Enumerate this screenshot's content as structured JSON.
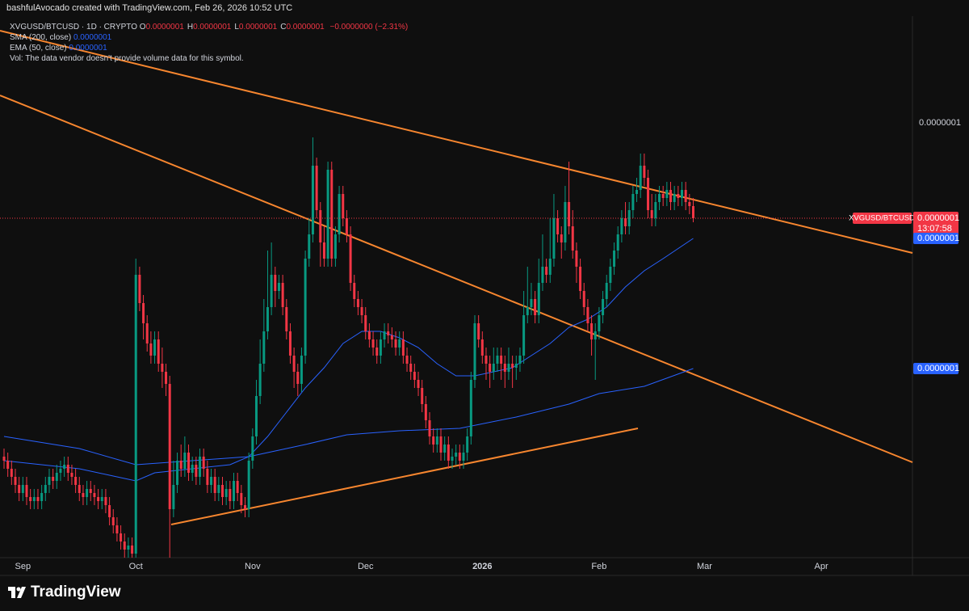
{
  "header": {
    "credit": "bashfulAvocado created with TradingView.com, Feb 26, 2026 10:52 UTC",
    "logo": "TradingView"
  },
  "legend": {
    "symbol": "XVGUSD/BTCUSD · 1D · CRYPTO",
    "ohlc": [
      {
        "key": "O",
        "value": "0.0000001"
      },
      {
        "key": "H",
        "value": "0.0000001"
      },
      {
        "key": "L",
        "value": "0.0000001"
      },
      {
        "key": "C",
        "value": "0.0000001"
      }
    ],
    "change": "−0.0000000 (−2.31%)",
    "volume_note": "Vol: The data vendor doesn't provide volume data for this symbol."
  },
  "chart_data": {
    "type": "candlestick",
    "up_color": "#089981",
    "down_color": "#f23645",
    "last_tag": {
      "name": "XVGUSD/BTCUSD",
      "label": "0.0000001",
      "countdown": "13:07:58"
    },
    "xlim": [
      0,
      241
    ],
    "xticks": [
      {
        "value": 5,
        "label": "Sep"
      },
      {
        "value": 35,
        "label": "Oct"
      },
      {
        "value": 66,
        "label": "Nov"
      },
      {
        "value": 96,
        "label": "Dec"
      },
      {
        "value": 127,
        "label": "2026"
      },
      {
        "value": 158,
        "label": "Feb"
      },
      {
        "value": 186,
        "label": "Mar"
      },
      {
        "value": 217,
        "label": "Apr"
      }
    ],
    "ylim": [
      3e-08,
      1.6e-07
    ],
    "yticks": [
      {
        "value": 1.396e-07,
        "label": "0.0000001"
      }
    ],
    "grid": false,
    "open": [
      5.7e-08,
      5.6e-08,
      5.4e-08,
      5.2e-08,
      5e-08,
      4.8e-08,
      5e-08,
      4.7e-08,
      4.6e-08,
      4.7e-08,
      4.6e-08,
      4.8e-08,
      5e-08,
      5.2e-08,
      5.1e-08,
      5.3e-08,
      5.4e-08,
      5.5e-08,
      5.3e-08,
      5.2e-08,
      5e-08,
      4.8e-08,
      4.7e-08,
      4.9e-08,
      4.8e-08,
      4.7e-08,
      4.6e-08,
      4.7e-08,
      4.5e-08,
      4.2e-08,
      4e-08,
      3.8e-08,
      3.6e-08,
      3.4e-08,
      3.5e-08,
      3.3e-08,
      1.02e-07,
      9.5e-08,
      9e-08,
      8.5e-08,
      8.2e-08,
      8.6e-08,
      8e-08,
      7.8e-08,
      7.5e-08,
      4.4e-08,
      5e-08,
      5.6e-08,
      5.4e-08,
      5.8e-08,
      5.3e-08,
      5.5e-08,
      5.2e-08,
      5.7e-08,
      5.4e-08,
      5e-08,
      5.2e-08,
      4.8e-08,
      5e-08,
      4.7e-08,
      4.9e-08,
      4.6e-08,
      5.1e-08,
      4.8e-08,
      4.5e-08,
      4.4e-08,
      5.6e-08,
      6.2e-08,
      7.2e-08,
      8e-08,
      8.8e-08,
      9.4e-08,
      1.02e-07,
      9.8e-08,
      1e-07,
      9.4e-08,
      8.8e-08,
      8.2e-08,
      7.8e-08,
      7.5e-08,
      8.2e-08,
      1.06e-07,
      1.12e-07,
      1.29e-07,
      1.18e-07,
      1.1e-07,
      1.06e-07,
      1.28e-07,
      1.06e-07,
      1.12e-07,
      1.22e-07,
      1.16e-07,
      1.12e-07,
      1e-07,
      9.6e-08,
      9.4e-08,
      9.2e-08,
      8.8e-08,
      8.6e-08,
      8.4e-08,
      8.2e-08,
      8.6e-08,
      8.8e-08,
      8.7e-08,
      8.6e-08,
      8.4e-08,
      8.6e-08,
      8.2e-08,
      8e-08,
      7.8e-08,
      7.6e-08,
      7.4e-08,
      7e-08,
      6.6e-08,
      6.2e-08,
      6e-08,
      6.2e-08,
      5.8e-08,
      6e-08,
      5.6e-08,
      5.7e-08,
      5.8e-08,
      5.6e-08,
      5.8e-08,
      6.2e-08,
      7.6e-08,
      9e-08,
      8.6e-08,
      8.2e-08,
      8e-08,
      7.8e-08,
      8e-08,
      8.2e-08,
      8e-08,
      7.8e-08,
      8e-08,
      7.9e-08,
      8e-08,
      8.2e-08,
      9.2e-08,
      9.4e-08,
      9.6e-08,
      9.2e-08,
      1e-07,
      1.04e-07,
      1.02e-07,
      1.06e-07,
      1.16e-07,
      1.12e-07,
      1.1e-07,
      1.2e-07,
      1.14e-07,
      1.08e-07,
      1.04e-07,
      9.8e-08,
      9.4e-08,
      9e-08,
      8.6e-08,
      8.8e-08,
      9.2e-08,
      9.6e-08,
      1e-07,
      1.04e-07,
      1.08e-07,
      1.12e-07,
      1.16e-07,
      1.14e-07,
      1.18e-07,
      1.22e-07,
      1.23e-07,
      1.29e-07,
      1.26e-07,
      1.18e-07,
      1.16e-07,
      1.2e-07,
      1.22e-07,
      1.21e-07,
      1.23e-07,
      1.2e-07,
      1.22e-07,
      1.21e-07,
      1.23e-07,
      1.2e-07,
      1.19e-07
    ],
    "high": [
      5.9e-08,
      5.8e-08,
      5.6e-08,
      5.4e-08,
      5.2e-08,
      5.2e-08,
      5.2e-08,
      4.9e-08,
      4.9e-08,
      4.9e-08,
      5e-08,
      5.2e-08,
      5.4e-08,
      5.4e-08,
      5.5e-08,
      5.6e-08,
      5.7e-08,
      5.7e-08,
      5.5e-08,
      5.4e-08,
      5.2e-08,
      5e-08,
      5.1e-08,
      5.1e-08,
      5e-08,
      4.9e-08,
      4.9e-08,
      4.9e-08,
      4.7e-08,
      4.4e-08,
      4.2e-08,
      4e-08,
      3.8e-08,
      3.7e-08,
      3.7e-08,
      1.06e-07,
      1.04e-07,
      9.7e-08,
      9.2e-08,
      8.8e-08,
      8.8e-08,
      8.8e-08,
      8.4e-08,
      8e-08,
      7.7e-08,
      5.6e-08,
      5.8e-08,
      6e-08,
      6.2e-08,
      6e-08,
      5.7e-08,
      5.7e-08,
      5.9e-08,
      5.9e-08,
      5.6e-08,
      5.4e-08,
      5.4e-08,
      5.2e-08,
      5.2e-08,
      5.1e-08,
      5.1e-08,
      5.3e-08,
      5.3e-08,
      5e-08,
      4.7e-08,
      5.8e-08,
      6.4e-08,
      7.6e-08,
      8.6e-08,
      9.6e-08,
      1.08e-07,
      1.1e-07,
      1.04e-07,
      1.02e-07,
      1.02e-07,
      9.6e-08,
      9e-08,
      8.4e-08,
      8e-08,
      8.4e-08,
      1.08e-07,
      1.16e-07,
      1.36e-07,
      1.31e-07,
      1.2e-07,
      1.14e-07,
      1.3e-07,
      1.3e-07,
      1.14e-07,
      1.24e-07,
      1.24e-07,
      1.18e-07,
      1.14e-07,
      1.02e-07,
      9.8e-08,
      9.6e-08,
      9.4e-08,
      9e-08,
      8.8e-08,
      8.6e-08,
      8.8e-08,
      9e-08,
      9e-08,
      8.9e-08,
      8.8e-08,
      8.8e-08,
      8.8e-08,
      8.4e-08,
      8.2e-08,
      8e-08,
      7.8e-08,
      7.6e-08,
      7.2e-08,
      6.8e-08,
      6.4e-08,
      6.4e-08,
      6.4e-08,
      6.2e-08,
      6.2e-08,
      5.9e-08,
      6e-08,
      6e-08,
      6e-08,
      6.4e-08,
      7.8e-08,
      9.2e-08,
      9.2e-08,
      8.8e-08,
      8.4e-08,
      8.2e-08,
      8.4e-08,
      8.4e-08,
      8.4e-08,
      8.2e-08,
      8.4e-08,
      8.2e-08,
      8.2e-08,
      8.4e-08,
      9.8e-08,
      1.04e-07,
      1e-07,
      9.8e-08,
      1.06e-07,
      1.12e-07,
      1.06e-07,
      1.16e-07,
      1.22e-07,
      1.18e-07,
      1.14e-07,
      1.24e-07,
      1.3e-07,
      1.18e-07,
      1.1e-07,
      1.06e-07,
      1e-07,
      9.6e-08,
      9.2e-08,
      9e-08,
      9.4e-08,
      9.8e-08,
      1.02e-07,
      1.06e-07,
      1.1e-07,
      1.14e-07,
      1.18e-07,
      1.2e-07,
      1.2e-07,
      1.24e-07,
      1.26e-07,
      1.32e-07,
      1.32e-07,
      1.28e-07,
      1.22e-07,
      1.22e-07,
      1.24e-07,
      1.24e-07,
      1.25e-07,
      1.25e-07,
      1.24e-07,
      1.24e-07,
      1.25e-07,
      1.25e-07,
      1.22e-07,
      1.21e-07
    ],
    "low": [
      5.4e-08,
      5.2e-08,
      5e-08,
      4.8e-08,
      4.6e-08,
      4.6e-08,
      4.5e-08,
      4.4e-08,
      4.4e-08,
      4.4e-08,
      4.4e-08,
      4.6e-08,
      4.8e-08,
      4.9e-08,
      4.9e-08,
      5.1e-08,
      5.2e-08,
      5.1e-08,
      5e-08,
      4.8e-08,
      4.6e-08,
      4.5e-08,
      4.5e-08,
      4.6e-08,
      4.5e-08,
      4.4e-08,
      4.4e-08,
      4.3e-08,
      4e-08,
      3.8e-08,
      3.6e-08,
      3.4e-08,
      3.2e-08,
      3.2e-08,
      3.1e-08,
      3.2e-08,
      9.3e-08,
      8.6e-08,
      8.3e-08,
      8e-08,
      8e-08,
      7.8e-08,
      7.4e-08,
      7.2e-08,
      3.2e-08,
      4.2e-08,
      4.8e-08,
      5.2e-08,
      5.2e-08,
      5.1e-08,
      5.1e-08,
      5e-08,
      5e-08,
      5.2e-08,
      4.8e-08,
      4.8e-08,
      4.6e-08,
      4.6e-08,
      4.5e-08,
      4.5e-08,
      4.4e-08,
      4.4e-08,
      4.6e-08,
      4.3e-08,
      4.2e-08,
      4.2e-08,
      5.4e-08,
      6e-08,
      7e-08,
      7.8e-08,
      8.6e-08,
      9.2e-08,
      9.4e-08,
      9.6e-08,
      9.2e-08,
      8.6e-08,
      8e-08,
      7.4e-08,
      7.2e-08,
      7.3e-08,
      8e-08,
      1.04e-07,
      1.1e-07,
      1.16e-07,
      1.04e-07,
      1.04e-07,
      1.04e-07,
      1.04e-07,
      1.04e-07,
      1.1e-07,
      1.14e-07,
      1.1e-07,
      9.8e-08,
      9.4e-08,
      9.2e-08,
      9e-08,
      8.6e-08,
      8.4e-08,
      8.2e-08,
      8e-08,
      8e-08,
      8.4e-08,
      8.5e-08,
      8.4e-08,
      8.2e-08,
      8.2e-08,
      8e-08,
      7.8e-08,
      7.6e-08,
      7.4e-08,
      7.2e-08,
      6.8e-08,
      6.4e-08,
      6e-08,
      5.8e-08,
      5.8e-08,
      5.6e-08,
      5.6e-08,
      5.4e-08,
      5.4e-08,
      5.5e-08,
      5.4e-08,
      5.4e-08,
      5.6e-08,
      6e-08,
      7.4e-08,
      8.4e-08,
      8e-08,
      7.6e-08,
      7.4e-08,
      7.6e-08,
      7.8e-08,
      7.6e-08,
      7.4e-08,
      7.6e-08,
      7.4e-08,
      7.6e-08,
      7.8e-08,
      8e-08,
      9e-08,
      9.2e-08,
      9e-08,
      9e-08,
      9.8e-08,
      1e-07,
      1e-07,
      1.04e-07,
      1.1e-07,
      1.06e-07,
      1.08e-07,
      1.12e-07,
      1.06e-07,
      1e-07,
      9.6e-08,
      9.2e-08,
      8.8e-08,
      8.2e-08,
      7.6e-08,
      8.6e-08,
      9e-08,
      9.4e-08,
      9.8e-08,
      1.02e-07,
      1.06e-07,
      1.1e-07,
      1.12e-07,
      1.12e-07,
      1.16e-07,
      1.2e-07,
      1.21e-07,
      1.24e-07,
      1.16e-07,
      1.14e-07,
      1.14e-07,
      1.18e-07,
      1.19e-07,
      1.19e-07,
      1.18e-07,
      1.18e-07,
      1.19e-07,
      1.19e-07,
      1.18e-07,
      1.17e-07,
      1.15e-07
    ],
    "close": [
      5.6e-08,
      5.4e-08,
      5.2e-08,
      5e-08,
      4.8e-08,
      5e-08,
      4.7e-08,
      4.6e-08,
      4.7e-08,
      4.6e-08,
      4.8e-08,
      5e-08,
      5.2e-08,
      5.1e-08,
      5.3e-08,
      5.4e-08,
      5.5e-08,
      5.3e-08,
      5.2e-08,
      5e-08,
      4.8e-08,
      4.7e-08,
      4.9e-08,
      4.8e-08,
      4.7e-08,
      4.6e-08,
      4.7e-08,
      4.5e-08,
      4.2e-08,
      4e-08,
      3.8e-08,
      3.6e-08,
      3.4e-08,
      3.5e-08,
      3.3e-08,
      1.02e-07,
      9.5e-08,
      9e-08,
      8.5e-08,
      8.2e-08,
      8.6e-08,
      8e-08,
      7.8e-08,
      7.5e-08,
      4.4e-08,
      5e-08,
      5.6e-08,
      5.4e-08,
      5.8e-08,
      5.3e-08,
      5.5e-08,
      5.2e-08,
      5.7e-08,
      5.4e-08,
      5e-08,
      5.2e-08,
      4.8e-08,
      5e-08,
      4.7e-08,
      4.9e-08,
      4.6e-08,
      5.1e-08,
      4.8e-08,
      4.5e-08,
      4.4e-08,
      5.6e-08,
      6.2e-08,
      7.2e-08,
      8e-08,
      8.8e-08,
      9.4e-08,
      1.02e-07,
      9.8e-08,
      1e-07,
      9.4e-08,
      8.8e-08,
      8.2e-08,
      7.8e-08,
      7.5e-08,
      8.2e-08,
      1.06e-07,
      1.12e-07,
      1.29e-07,
      1.18e-07,
      1.1e-07,
      1.06e-07,
      1.28e-07,
      1.06e-07,
      1.12e-07,
      1.22e-07,
      1.16e-07,
      1.12e-07,
      1e-07,
      9.6e-08,
      9.4e-08,
      9.2e-08,
      8.8e-08,
      8.6e-08,
      8.4e-08,
      8.2e-08,
      8.6e-08,
      8.8e-08,
      8.7e-08,
      8.6e-08,
      8.4e-08,
      8.6e-08,
      8.2e-08,
      8e-08,
      7.8e-08,
      7.6e-08,
      7.4e-08,
      7e-08,
      6.6e-08,
      6.2e-08,
      6e-08,
      6.2e-08,
      5.8e-08,
      6e-08,
      5.6e-08,
      5.7e-08,
      5.8e-08,
      5.6e-08,
      5.8e-08,
      6.2e-08,
      7.6e-08,
      9e-08,
      8.6e-08,
      8.2e-08,
      8e-08,
      7.8e-08,
      8e-08,
      8.2e-08,
      8e-08,
      7.8e-08,
      8e-08,
      7.9e-08,
      8e-08,
      8.2e-08,
      9.2e-08,
      9.4e-08,
      9.6e-08,
      9.2e-08,
      1e-07,
      1.04e-07,
      1.02e-07,
      1.06e-07,
      1.16e-07,
      1.12e-07,
      1.1e-07,
      1.2e-07,
      1.14e-07,
      1.08e-07,
      1.04e-07,
      9.8e-08,
      9.4e-08,
      9e-08,
      8.6e-08,
      8.8e-08,
      9.2e-08,
      9.6e-08,
      1e-07,
      1.04e-07,
      1.08e-07,
      1.12e-07,
      1.16e-07,
      1.14e-07,
      1.18e-07,
      1.22e-07,
      1.23e-07,
      1.29e-07,
      1.26e-07,
      1.18e-07,
      1.16e-07,
      1.2e-07,
      1.22e-07,
      1.21e-07,
      1.23e-07,
      1.2e-07,
      1.22e-07,
      1.21e-07,
      1.23e-07,
      1.2e-07,
      1.19e-07,
      1.16e-07
    ],
    "series": [
      {
        "name": "SMA (200, close)",
        "color": "#2962ff",
        "value_label": "0.0000001",
        "x": [
          0,
          20,
          35,
          50,
          65,
          80,
          91,
          105,
          121,
          136,
          150,
          158,
          170,
          183
        ],
        "values": [
          6.2e-08,
          5.9e-08,
          5.5e-08,
          5.6e-08,
          5.7e-08,
          6e-08,
          6.24e-08,
          6.34e-08,
          6.4e-08,
          6.68e-08,
          7e-08,
          7.26e-08,
          7.44e-08,
          7.88e-08
        ]
      },
      {
        "name": "EMA (50, close)",
        "color": "#2962ff",
        "value_label": "0.0000001",
        "x": [
          0,
          10,
          20,
          30,
          35,
          40,
          50,
          60,
          65,
          70,
          75,
          80,
          85,
          90,
          95,
          100,
          105,
          110,
          115,
          120,
          125,
          130,
          135,
          140,
          145,
          150,
          155,
          160,
          165,
          170,
          175,
          183
        ],
        "values": [
          5.6e-08,
          5.5e-08,
          5.4e-08,
          5.2e-08,
          5.1e-08,
          5.3e-08,
          5.4e-08,
          5.5e-08,
          5.7e-08,
          6.2e-08,
          6.8e-08,
          7.4e-08,
          7.9e-08,
          8.5e-08,
          8.8e-08,
          8.8e-08,
          8.64e-08,
          8.4e-08,
          8e-08,
          7.7e-08,
          7.7e-08,
          7.8e-08,
          7.9e-08,
          8.2e-08,
          8.5e-08,
          8.9e-08,
          9.1e-08,
          9.4e-08,
          9.9e-08,
          1.03e-07,
          1.06e-07,
          1.11e-07
        ]
      }
    ]
  }
}
